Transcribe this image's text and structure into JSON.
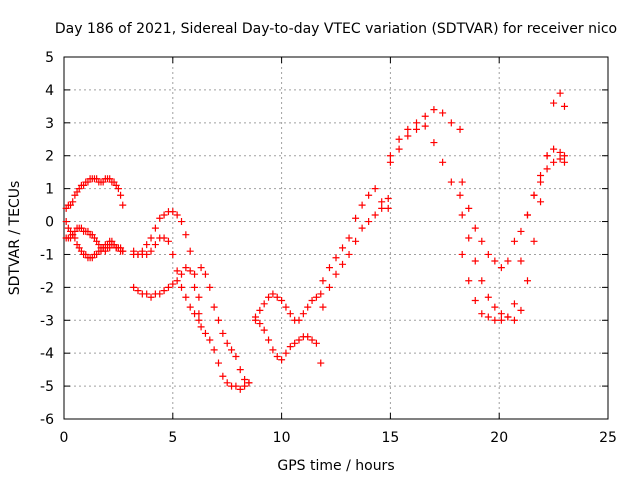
{
  "chart_data": {
    "type": "scatter",
    "title": "Day 186 of 2021, Sidereal Day-to-day VTEC variation (SDTVAR) for receiver nico",
    "xlabel": "GPS time / hours",
    "ylabel": "SDTVAR / TECUs",
    "xlim": [
      0,
      25
    ],
    "ylim": [
      -6,
      5
    ],
    "xticks": [
      "0",
      "5",
      "10",
      "15",
      "20",
      "25"
    ],
    "yticks": [
      "5",
      "4",
      "3",
      "2",
      "1",
      "0",
      "-1",
      "-2",
      "-3",
      "-4",
      "-5",
      "-6"
    ],
    "grid": true,
    "marker": "plus",
    "color": "#ff0000",
    "series": [
      {
        "x": [
          0.1,
          0.2,
          0.3,
          0.4,
          0.5,
          0.6,
          0.7,
          0.8,
          0.9,
          1.0,
          1.1,
          1.2,
          1.3,
          1.4,
          1.5,
          1.6,
          1.7,
          1.8,
          1.9,
          2.0,
          2.1,
          2.2,
          2.3,
          2.4,
          2.5,
          2.6,
          2.7,
          0.1,
          0.2,
          0.3,
          0.4,
          0.5,
          0.6,
          0.7,
          0.8,
          0.9,
          1.0,
          1.1,
          1.2,
          1.3,
          1.4,
          1.5,
          1.6,
          1.7,
          1.8,
          1.9,
          2.0,
          2.1,
          2.2,
          2.3,
          2.4,
          2.5,
          2.6,
          2.7,
          0.1,
          0.2,
          0.3,
          0.4,
          0.5,
          0.6,
          0.7,
          0.8,
          0.9,
          1.0,
          1.1,
          1.2,
          1.3,
          1.4,
          1.5,
          1.6,
          1.7,
          1.8,
          1.9,
          2.0,
          2.1,
          2.2,
          2.3,
          2.4,
          2.5,
          2.6,
          2.7,
          3.2,
          3.4,
          3.6,
          3.8,
          4.0,
          4.2,
          4.4,
          4.6,
          4.8,
          5.0,
          5.2,
          5.4,
          5.6,
          5.8,
          6.0,
          6.2,
          3.2,
          3.4,
          3.6,
          3.8,
          4.0,
          4.2,
          4.4,
          4.6,
          4.8,
          5.0,
          5.2,
          5.4,
          5.6,
          5.8,
          6.0,
          6.2,
          3.2,
          3.4,
          3.6,
          3.8,
          4.0,
          4.2,
          4.4,
          4.6,
          4.8,
          5.0,
          5.2,
          5.4,
          5.6,
          5.8,
          6.0,
          6.2,
          6.3,
          6.5,
          6.7,
          6.9,
          7.1,
          7.3,
          7.5,
          7.7,
          7.9,
          8.1,
          8.3,
          8.5,
          6.3,
          6.5,
          6.7,
          6.9,
          7.1,
          7.3,
          7.5,
          7.7,
          7.9,
          8.1,
          8.3,
          8.5,
          8.8,
          9.0,
          9.2,
          9.4,
          9.6,
          9.8,
          10.0,
          10.2,
          10.4,
          10.6,
          10.8,
          11.0,
          11.2,
          11.4,
          11.6,
          11.8,
          8.8,
          9.0,
          9.2,
          9.4,
          9.6,
          9.8,
          10.0,
          10.2,
          10.4,
          10.6,
          10.8,
          11.0,
          11.2,
          11.4,
          11.6,
          11.8,
          11.9,
          12.2,
          12.5,
          12.8,
          13.1,
          13.4,
          13.7,
          14.0,
          14.3,
          14.6,
          14.9,
          11.9,
          12.2,
          12.5,
          12.8,
          13.1,
          13.4,
          13.7,
          14.0,
          14.3,
          14.6,
          14.9,
          15.0,
          15.4,
          15.8,
          16.2,
          16.6,
          17.0,
          17.4,
          17.8,
          18.2,
          15.0,
          15.4,
          15.8,
          16.2,
          16.6,
          17.0,
          17.4,
          17.8,
          18.2,
          18.3,
          18.6,
          18.9,
          19.2,
          19.5,
          19.8,
          20.1,
          20.4,
          20.7,
          21.0,
          21.3,
          21.6,
          21.9,
          22.2,
          22.5,
          22.8,
          23.0,
          18.3,
          18.6,
          18.9,
          19.2,
          19.5,
          19.8,
          20.1,
          20.4,
          20.7,
          21.0,
          21.3,
          21.6,
          21.9,
          22.2,
          22.5,
          22.8,
          23.0,
          18.3,
          18.6,
          18.9,
          19.2,
          19.5,
          19.8,
          20.1,
          20.4,
          20.7,
          21.0,
          21.3,
          21.6,
          21.9,
          22.2,
          22.5,
          22.8,
          23.0
        ],
        "y": [
          0.4,
          0.5,
          0.5,
          0.6,
          0.8,
          0.9,
          1.0,
          1.1,
          1.1,
          1.2,
          1.2,
          1.3,
          1.3,
          1.3,
          1.3,
          1.2,
          1.2,
          1.2,
          1.3,
          1.3,
          1.3,
          1.2,
          1.2,
          1.1,
          1.0,
          0.8,
          0.5,
          0.0,
          -0.2,
          -0.3,
          -0.4,
          -0.5,
          -0.7,
          -0.8,
          -0.9,
          -1.0,
          -1.0,
          -1.1,
          -1.1,
          -1.1,
          -1.0,
          -1.0,
          -0.9,
          -0.9,
          -0.8,
          -0.7,
          -0.7,
          -0.6,
          -0.6,
          -0.7,
          -0.8,
          -0.8,
          -0.9,
          -0.9,
          -0.5,
          -0.5,
          -0.5,
          -0.4,
          -0.3,
          -0.2,
          -0.2,
          -0.2,
          -0.3,
          -0.3,
          -0.3,
          -0.4,
          -0.4,
          -0.5,
          -0.6,
          -0.7,
          -0.8,
          -0.8,
          -0.9,
          -0.8,
          -0.8,
          -0.7,
          -0.7,
          -0.8,
          -0.8,
          -0.8,
          -0.9,
          -2.0,
          -2.1,
          -2.2,
          -2.2,
          -2.3,
          -2.2,
          -2.2,
          -2.1,
          -2.0,
          -1.9,
          -1.8,
          -1.6,
          -1.4,
          -1.5,
          -2.0,
          -2.8,
          -0.9,
          -1.0,
          -1.0,
          -1.0,
          -0.9,
          -0.7,
          -0.5,
          -0.5,
          -0.6,
          -1.0,
          -1.5,
          -2.0,
          -2.3,
          -2.6,
          -2.8,
          -3.0,
          -1.0,
          -1.0,
          -0.9,
          -0.7,
          -0.5,
          -0.2,
          0.1,
          0.2,
          0.3,
          0.3,
          0.2,
          0.0,
          -0.4,
          -0.9,
          -1.6,
          -2.3,
          -1.4,
          -1.6,
          -2.0,
          -2.6,
          -3.0,
          -3.4,
          -3.7,
          -3.9,
          -4.1,
          -4.5,
          -4.8,
          -4.9,
          -3.2,
          -3.4,
          -3.6,
          -3.9,
          -4.3,
          -4.7,
          -4.9,
          -5.0,
          -5.0,
          -5.1,
          -5.0,
          -4.9,
          -2.9,
          -3.1,
          -3.3,
          -3.6,
          -3.9,
          -4.1,
          -4.2,
          -4.0,
          -3.8,
          -3.7,
          -3.6,
          -3.5,
          -3.5,
          -3.6,
          -3.7,
          -4.3,
          -3.0,
          -2.7,
          -2.5,
          -2.3,
          -2.2,
          -2.3,
          -2.4,
          -2.6,
          -2.8,
          -3.0,
          -3.0,
          -2.8,
          -2.6,
          -2.4,
          -2.3,
          -2.2,
          -2.6,
          -2.0,
          -1.6,
          -1.3,
          -1.0,
          -0.6,
          -0.2,
          0.0,
          0.2,
          0.4,
          0.7,
          -1.8,
          -1.4,
          -1.1,
          -0.8,
          -0.5,
          0.1,
          0.5,
          0.8,
          1.0,
          0.6,
          0.4,
          2.0,
          2.5,
          2.8,
          3.0,
          3.2,
          3.4,
          3.3,
          3.0,
          2.8,
          1.8,
          2.2,
          2.6,
          2.8,
          2.9,
          2.4,
          1.8,
          1.2,
          0.8,
          0.2,
          -0.5,
          -1.2,
          -1.8,
          -2.3,
          -2.6,
          -2.8,
          -2.9,
          -3.0,
          -2.7,
          -1.8,
          -0.6,
          0.6,
          2.0,
          3.6,
          3.9,
          3.5,
          -1.0,
          -1.8,
          -2.4,
          -2.8,
          -2.9,
          -3.0,
          -3.0,
          -2.9,
          -2.5,
          -1.2,
          0.2,
          0.8,
          1.4,
          2.0,
          2.2,
          2.1,
          2.0,
          1.2,
          0.4,
          -0.2,
          -0.6,
          -1.0,
          -1.2,
          -1.4,
          -1.2,
          -0.6,
          -0.3,
          0.2,
          0.8,
          1.2,
          1.6,
          1.8,
          1.9,
          1.8
        ]
      }
    ]
  }
}
